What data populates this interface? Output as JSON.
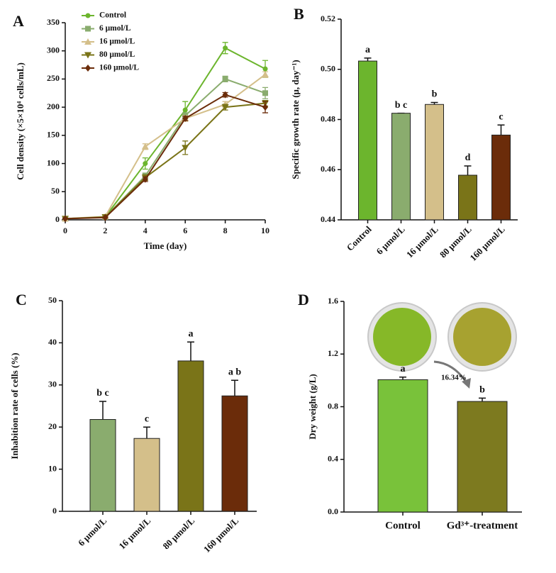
{
  "chart_data": [
    {
      "type": "line",
      "panel": "A",
      "xlabel": "Time (day)",
      "ylabel": "Cell density (×5×10⁴ cells/mL)",
      "x": [
        0,
        2,
        4,
        6,
        8,
        10
      ],
      "xlim": [
        0,
        10
      ],
      "xticks": [
        0,
        2,
        4,
        6,
        8,
        10
      ],
      "ylim": [
        0,
        350
      ],
      "yticks": [
        0,
        50,
        100,
        150,
        200,
        250,
        300,
        350
      ],
      "legend": "upper left",
      "series": [
        {
          "name": "Control",
          "color": "#6cb52d",
          "marker": "circle",
          "values": [
            2,
            5,
            100,
            195,
            305,
            268
          ],
          "errors": [
            1,
            1,
            10,
            15,
            10,
            15
          ]
        },
        {
          "name": "6 μmol/L",
          "color": "#8aac6e",
          "marker": "square",
          "values": [
            2,
            5,
            78,
            185,
            250,
            225
          ],
          "errors": [
            1,
            1,
            5,
            5,
            5,
            10
          ]
        },
        {
          "name": "16 μmol/L",
          "color": "#d4bf8a",
          "marker": "triangle",
          "values": [
            2,
            6,
            130,
            180,
            205,
            258
          ],
          "errors": [
            1,
            1,
            5,
            5,
            5,
            5
          ]
        },
        {
          "name": "80 μmol/L",
          "color": "#7a7418",
          "marker": "triangle-down",
          "values": [
            2,
            5,
            75,
            128,
            200,
            207
          ],
          "errors": [
            1,
            1,
            5,
            12,
            5,
            5
          ]
        },
        {
          "name": "160 μmol/L",
          "color": "#6b2c0a",
          "marker": "diamond",
          "values": [
            2,
            4,
            72,
            180,
            222,
            200
          ],
          "errors": [
            1,
            1,
            4,
            4,
            4,
            10
          ]
        }
      ]
    },
    {
      "type": "bar",
      "panel": "B",
      "ylabel": "Specific growth rate (μ, day⁻¹)",
      "categories": [
        "Control",
        "6 μmol/L",
        "16 μmol/L",
        "80 μmol/L",
        "160 μmol/L"
      ],
      "values": [
        0.5033,
        0.4825,
        0.486,
        0.4578,
        0.4738
      ],
      "errors": [
        0.0012,
        0,
        0.0008,
        0.0037,
        0.004
      ],
      "letters": [
        "a",
        "b c",
        "b",
        "d",
        "c"
      ],
      "colors": [
        "#6cb52d",
        "#8aac6e",
        "#d4bf8a",
        "#7a7418",
        "#6b2c0a"
      ],
      "ylim": [
        0.44,
        0.52
      ],
      "yticks": [
        0.44,
        0.46,
        0.48,
        {
          "value": 0.5,
          "label": "0.50"
        },
        0.52
      ]
    },
    {
      "type": "bar",
      "panel": "C",
      "ylabel": "Inhabition rate of cells (%)",
      "categories": [
        "6 μmol/L",
        "16 μmol/L",
        "80 μmol/L",
        "160 μmol/L"
      ],
      "values": [
        21.8,
        17.3,
        35.7,
        27.4
      ],
      "errors": [
        4.3,
        2.7,
        4.5,
        3.7
      ],
      "letters": [
        "b c",
        "c",
        "a",
        "a b"
      ],
      "colors": [
        "#8aac6e",
        "#d4bf8a",
        "#7a7418",
        "#6b2c0a"
      ],
      "ylim": [
        0,
        50
      ],
      "yticks": [
        0,
        10,
        20,
        30,
        40,
        50
      ]
    },
    {
      "type": "bar",
      "panel": "D",
      "ylabel": "Dry weight (g/L)",
      "categories": [
        "Control",
        "Gd³⁺-treatment"
      ],
      "values": [
        1.005,
        0.84
      ],
      "errors": [
        0.02,
        0.025
      ],
      "letters": [
        "a",
        "b"
      ],
      "colors": [
        "#79c23a",
        "#7d7a1f"
      ],
      "annotation": "16.34%",
      "ylim": [
        0,
        1.6
      ],
      "yticks": [
        {
          "value": 0,
          "label": "0.0"
        },
        0.4,
        0.8,
        1.2,
        1.6
      ]
    }
  ]
}
